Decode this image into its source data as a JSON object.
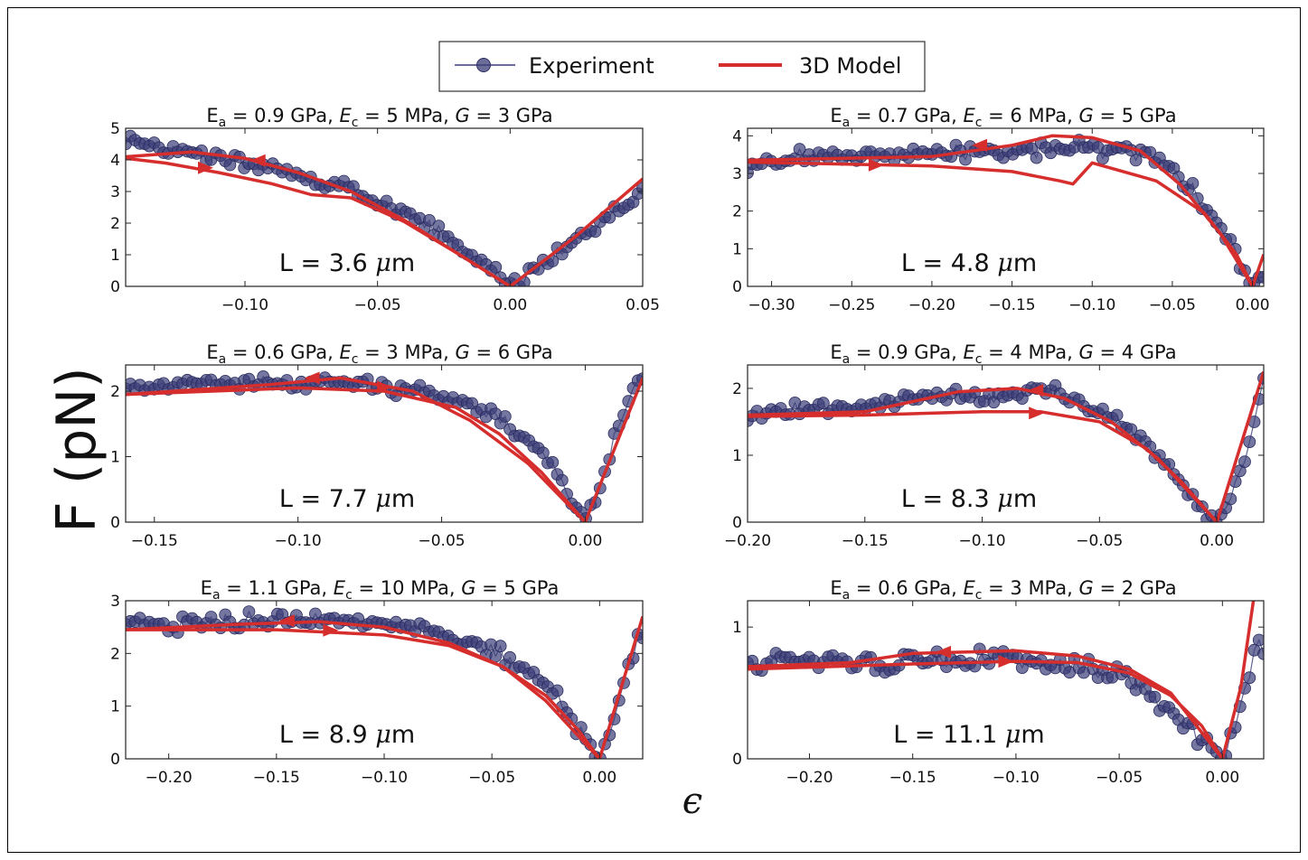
{
  "figure": {
    "ylabel": "F (pN)",
    "xlabel": "ϵ",
    "legend": {
      "placement": "top-center",
      "experiment_label": "Experiment",
      "model_label": "3D Model"
    },
    "colors": {
      "experiment": "#3b3d78",
      "model": "#d62d2d"
    }
  },
  "chart_data": [
    {
      "type": "line",
      "title": "E_a = 0.9 GPa, E_c = 5 MPa, G = 3 GPa",
      "title_parts": {
        "ea": "0.9",
        "ec": "5",
        "g": "3"
      },
      "length_label": "L = 3.6 μm",
      "length_value": "3.6",
      "xlim": [
        -0.145,
        0.05
      ],
      "ylim": [
        0,
        5
      ],
      "xticks": [
        -0.1,
        -0.05,
        0.0,
        0.05
      ],
      "xtick_labels": [
        "−0.10",
        "−0.05",
        "0.00",
        "0.05"
      ],
      "yticks": [
        0,
        1,
        2,
        3,
        4,
        5
      ],
      "ytick_labels": [
        "0",
        "1",
        "2",
        "3",
        "4",
        "5"
      ],
      "experiment": {
        "x": [
          -0.145,
          -0.12,
          -0.09,
          -0.06,
          -0.03,
          -0.01,
          0.0,
          0.02,
          0.04,
          0.05
        ],
        "y": [
          4.5,
          4.2,
          3.7,
          3.1,
          1.9,
          0.7,
          0.0,
          1.2,
          2.4,
          3.0
        ],
        "noise": 0.08
      },
      "model_series": [
        {
          "x": [
            -0.145,
            -0.13,
            -0.11,
            -0.09,
            -0.075,
            -0.06,
            -0.04,
            -0.02,
            0.0
          ],
          "y": [
            4.05,
            3.9,
            3.6,
            3.25,
            2.9,
            2.8,
            2.05,
            1.05,
            0.0
          ]
        },
        {
          "x": [
            -0.145,
            -0.12,
            -0.1,
            -0.08,
            -0.06,
            -0.04,
            -0.02,
            0.0
          ],
          "y": [
            4.1,
            4.25,
            4.05,
            3.6,
            3.0,
            2.1,
            1.05,
            0.0
          ]
        },
        {
          "x": [
            0.0,
            0.025,
            0.05
          ],
          "y": [
            0.0,
            1.6,
            3.4
          ]
        }
      ],
      "arrows": [
        {
          "x": -0.115,
          "y": 3.75,
          "dir": "right"
        },
        {
          "x": -0.095,
          "y": 3.98,
          "dir": "left"
        }
      ]
    },
    {
      "type": "line",
      "title": "E_a = 0.7 GPa, E_c = 6 MPa, G = 5 GPa",
      "title_parts": {
        "ea": "0.7",
        "ec": "6",
        "g": "5"
      },
      "length_label": "L = 4.8 μm",
      "length_value": "4.8",
      "xlim": [
        -0.315,
        0.007
      ],
      "ylim": [
        0,
        4.2
      ],
      "xticks": [
        -0.3,
        -0.25,
        -0.2,
        -0.15,
        -0.1,
        -0.05,
        0.0
      ],
      "xtick_labels": [
        "−0.30",
        "−0.25",
        "−0.20",
        "−0.15",
        "−0.10",
        "−0.05",
        "0.00"
      ],
      "yticks": [
        0,
        1,
        2,
        3,
        4
      ],
      "ytick_labels": [
        "0",
        "1",
        "2",
        "3",
        "4"
      ],
      "experiment": {
        "x": [
          -0.315,
          -0.25,
          -0.2,
          -0.15,
          -0.1,
          -0.07,
          -0.045,
          -0.03,
          -0.015,
          -0.005,
          0.0,
          0.005
        ],
        "y": [
          3.3,
          3.45,
          3.55,
          3.6,
          3.7,
          3.6,
          3.0,
          2.3,
          1.2,
          0.4,
          0.0,
          0.2
        ],
        "noise": 0.1
      },
      "model_series": [
        {
          "x": [
            -0.315,
            -0.2,
            -0.15,
            -0.12,
            -0.112,
            -0.1,
            -0.06,
            -0.03,
            -0.01,
            0.0
          ],
          "y": [
            3.3,
            3.2,
            3.05,
            2.8,
            2.72,
            3.28,
            2.8,
            1.95,
            0.85,
            0.0
          ]
        },
        {
          "x": [
            -0.315,
            -0.2,
            -0.15,
            -0.125,
            -0.1,
            -0.07,
            -0.045,
            -0.02,
            0.0
          ],
          "y": [
            3.35,
            3.45,
            3.75,
            4.0,
            3.95,
            3.6,
            2.7,
            1.4,
            0.0
          ]
        },
        {
          "x": [
            0.0,
            0.007
          ],
          "y": [
            0.0,
            0.85
          ]
        }
      ],
      "arrows": [
        {
          "x": -0.17,
          "y": 3.75,
          "dir": "left"
        },
        {
          "x": -0.235,
          "y": 3.22,
          "dir": "right"
        }
      ]
    },
    {
      "type": "line",
      "title": "E_a = 0.6 GPa, E_c = 3 MPa, G = 6 GPa",
      "title_parts": {
        "ea": "0.6",
        "ec": "3",
        "g": "6"
      },
      "length_label": "L = 7.7 μm",
      "length_value": "7.7",
      "xlim": [
        -0.16,
        0.02
      ],
      "ylim": [
        0,
        2.4
      ],
      "xticks": [
        -0.15,
        -0.1,
        -0.05,
        0.0
      ],
      "xtick_labels": [
        "−0.15",
        "−0.10",
        "−0.05",
        "0.00"
      ],
      "yticks": [
        0,
        1,
        2
      ],
      "ytick_labels": [
        "0",
        "1",
        "2"
      ],
      "experiment": {
        "x": [
          -0.16,
          -0.12,
          -0.08,
          -0.05,
          -0.03,
          -0.015,
          -0.005,
          0.0,
          0.005,
          0.012,
          0.018
        ],
        "y": [
          2.08,
          2.12,
          2.1,
          1.95,
          1.6,
          1.05,
          0.4,
          0.05,
          0.5,
          1.5,
          2.2
        ],
        "noise": 0.07
      },
      "model_series": [
        {
          "x": [
            -0.16,
            -0.1,
            -0.07,
            -0.045,
            -0.03,
            -0.015,
            0.0
          ],
          "y": [
            1.95,
            2.05,
            2.0,
            1.75,
            1.35,
            0.75,
            0.0
          ]
        },
        {
          "x": [
            -0.16,
            -0.11,
            -0.085,
            -0.06,
            -0.04,
            -0.02,
            0.0
          ],
          "y": [
            1.95,
            2.1,
            2.2,
            2.0,
            1.55,
            0.9,
            0.0
          ]
        },
        {
          "x": [
            0.0,
            0.02
          ],
          "y": [
            0.0,
            2.2
          ]
        }
      ],
      "arrows": [
        {
          "x": -0.095,
          "y": 2.2,
          "dir": "left"
        },
        {
          "x": -0.07,
          "y": 2.06,
          "dir": "right"
        }
      ]
    },
    {
      "type": "line",
      "title": "E_a = 0.9 GPa, E_c = 4 MPa, G = 4 GPa",
      "title_parts": {
        "ea": "0.9",
        "ec": "4",
        "g": "4"
      },
      "length_label": "L = 8.3 μm",
      "length_value": "8.3",
      "xlim": [
        -0.2,
        0.02
      ],
      "ylim": [
        0,
        2.35
      ],
      "xticks": [
        -0.2,
        -0.15,
        -0.1,
        -0.05,
        0.0
      ],
      "xtick_labels": [
        "−0.20",
        "−0.15",
        "−0.10",
        "−0.05",
        "0.00"
      ],
      "yticks": [
        0,
        1,
        2
      ],
      "ytick_labels": [
        "0",
        "1",
        "2"
      ],
      "experiment": {
        "x": [
          -0.2,
          -0.15,
          -0.11,
          -0.07,
          -0.04,
          -0.025,
          -0.012,
          -0.004,
          0.0,
          0.006,
          0.014,
          0.02
        ],
        "y": [
          1.6,
          1.75,
          1.9,
          1.95,
          1.5,
          1.0,
          0.45,
          0.1,
          0.0,
          0.4,
          1.2,
          2.2
        ],
        "noise": 0.09
      },
      "model_series": [
        {
          "x": [
            -0.2,
            -0.15,
            -0.1,
            -0.075,
            -0.05,
            -0.03,
            -0.015,
            0.0
          ],
          "y": [
            1.58,
            1.6,
            1.65,
            1.65,
            1.5,
            1.1,
            0.6,
            0.0
          ]
        },
        {
          "x": [
            -0.2,
            -0.15,
            -0.11,
            -0.085,
            -0.065,
            -0.045,
            -0.025,
            0.0
          ],
          "y": [
            1.6,
            1.65,
            1.95,
            2.0,
            1.85,
            1.5,
            0.95,
            0.0
          ]
        },
        {
          "x": [
            0.0,
            0.02
          ],
          "y": [
            0.0,
            2.25
          ]
        }
      ],
      "arrows": [
        {
          "x": -0.077,
          "y": 1.97,
          "dir": "left"
        },
        {
          "x": -0.077,
          "y": 1.63,
          "dir": "right"
        }
      ]
    },
    {
      "type": "line",
      "title": "E_a = 1.1 GPa, E_c = 10 MPa, G = 5 GPa",
      "title_parts": {
        "ea": "1.1",
        "ec": "10",
        "g": "5"
      },
      "length_label": "L = 8.9 μm",
      "length_value": "8.9",
      "xlim": [
        -0.22,
        0.02
      ],
      "ylim": [
        0,
        3
      ],
      "xticks": [
        -0.2,
        -0.15,
        -0.1,
        -0.05,
        0.0
      ],
      "xtick_labels": [
        "−0.20",
        "−0.15",
        "−0.10",
        "−0.05",
        "0.00"
      ],
      "yticks": [
        0,
        1,
        2,
        3
      ],
      "ytick_labels": [
        "0",
        "1",
        "2",
        "3"
      ],
      "experiment": {
        "x": [
          -0.22,
          -0.17,
          -0.13,
          -0.09,
          -0.06,
          -0.035,
          -0.02,
          -0.01,
          -0.003,
          0.0,
          0.008,
          0.014,
          0.018
        ],
        "y": [
          2.55,
          2.6,
          2.65,
          2.5,
          2.25,
          1.7,
          1.2,
          0.6,
          0.15,
          0.0,
          0.9,
          1.7,
          2.4
        ],
        "noise": 0.09
      },
      "model_series": [
        {
          "x": [
            -0.22,
            -0.15,
            -0.1,
            -0.07,
            -0.045,
            -0.025,
            -0.01,
            0.0
          ],
          "y": [
            2.45,
            2.45,
            2.35,
            2.15,
            1.75,
            1.2,
            0.55,
            0.0
          ]
        },
        {
          "x": [
            -0.22,
            -0.17,
            -0.13,
            -0.1,
            -0.07,
            -0.045,
            -0.025,
            0.0
          ],
          "y": [
            2.45,
            2.55,
            2.6,
            2.5,
            2.2,
            1.75,
            1.1,
            0.0
          ]
        },
        {
          "x": [
            0.0,
            0.02
          ],
          "y": [
            0.0,
            2.7
          ]
        }
      ],
      "arrows": [
        {
          "x": -0.145,
          "y": 2.62,
          "dir": "left"
        },
        {
          "x": -0.125,
          "y": 2.44,
          "dir": "right"
        }
      ]
    },
    {
      "type": "line",
      "title": "E_a = 0.6 GPa, E_c = 3 MPa, G = 2 GPa",
      "title_parts": {
        "ea": "0.6",
        "ec": "3",
        "g": "2"
      },
      "length_label": "L = 11.1 μm",
      "length_value": "11.1",
      "xlim": [
        -0.23,
        0.02
      ],
      "ylim": [
        0,
        1.2
      ],
      "xticks": [
        -0.2,
        -0.15,
        -0.1,
        -0.05,
        0.0
      ],
      "xtick_labels": [
        "−0.20",
        "−0.15",
        "−0.10",
        "−0.05",
        "0.00"
      ],
      "yticks": [
        0,
        1
      ],
      "ytick_labels": [
        "0",
        "1"
      ],
      "experiment": {
        "x": [
          -0.23,
          -0.18,
          -0.13,
          -0.08,
          -0.05,
          -0.03,
          -0.015,
          -0.006,
          0.0,
          0.004,
          0.01,
          0.015
        ],
        "y": [
          0.75,
          0.72,
          0.75,
          0.73,
          0.62,
          0.45,
          0.25,
          0.08,
          0.0,
          0.15,
          0.45,
          0.8
        ],
        "noise": 0.13
      },
      "model_series": [
        {
          "x": [
            -0.23,
            -0.15,
            -0.1,
            -0.07,
            -0.045,
            -0.025,
            -0.01,
            0.0
          ],
          "y": [
            0.68,
            0.72,
            0.74,
            0.73,
            0.65,
            0.48,
            0.25,
            0.0
          ]
        },
        {
          "x": [
            -0.23,
            -0.18,
            -0.15,
            -0.1,
            -0.07,
            -0.045,
            -0.025,
            0.0
          ],
          "y": [
            0.7,
            0.73,
            0.8,
            0.82,
            0.78,
            0.68,
            0.5,
            0.0
          ]
        },
        {
          "x": [
            0.0,
            0.009,
            0.015
          ],
          "y": [
            0.0,
            0.55,
            1.2
          ]
        }
      ],
      "arrows": [
        {
          "x": -0.135,
          "y": 0.81,
          "dir": "left"
        },
        {
          "x": -0.105,
          "y": 0.74,
          "dir": "right"
        }
      ]
    }
  ]
}
